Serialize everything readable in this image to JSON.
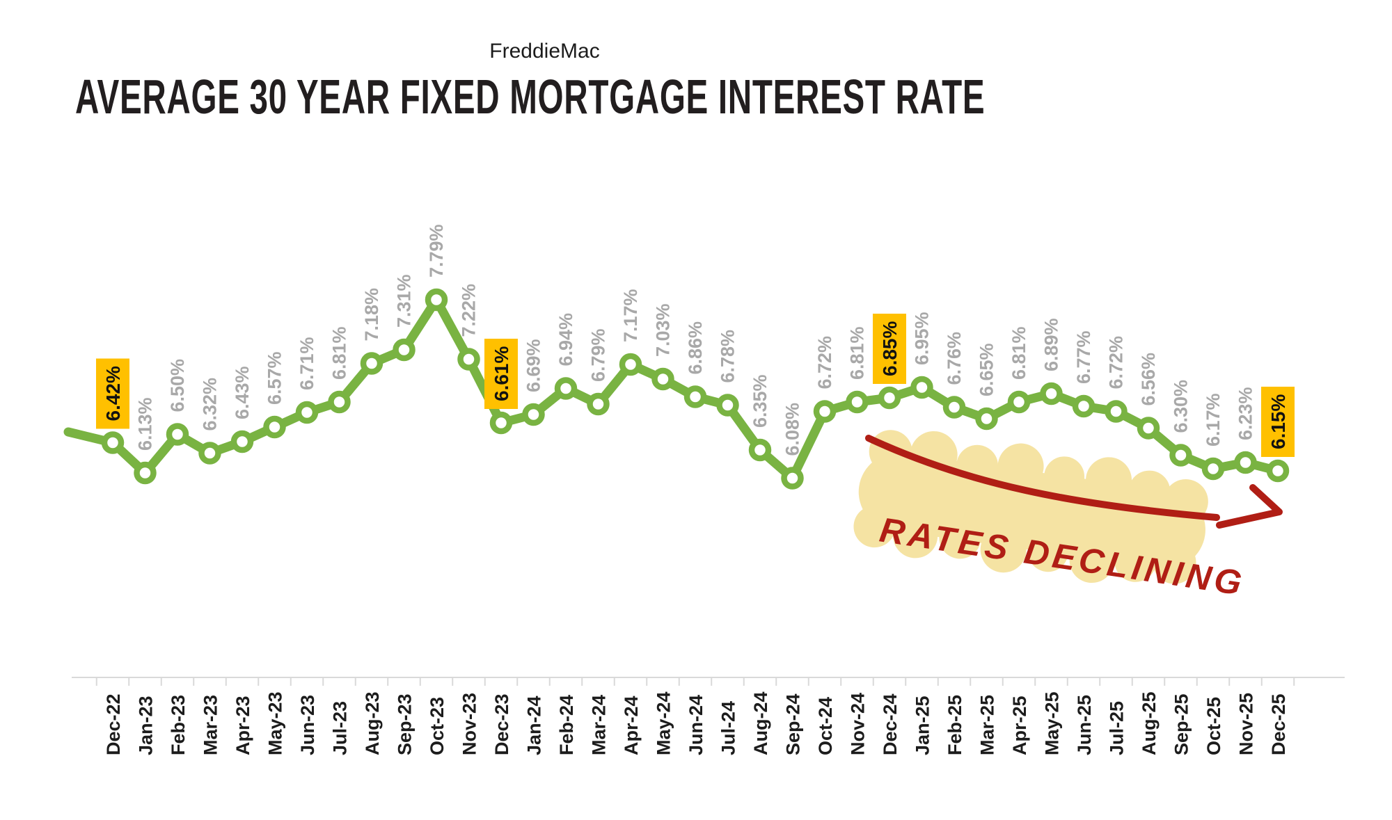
{
  "header": {
    "subtitle": "FreddieMac",
    "title": "AVERAGE 30 YEAR FIXED MORTGAGE INTEREST RATE"
  },
  "annotation": {
    "text": "RATES DECLINING"
  },
  "colors": {
    "line_green": "#79b342",
    "marker_fill": "#ffffff",
    "highlight_orange": "#ffc000",
    "label_gray": "#a8a8a8",
    "label_black": "#1c1c1c",
    "axis_gray": "#d9d9d9",
    "annotation_red": "#b01e15",
    "annotation_highlight": "#f5e3a3"
  },
  "chart_data": {
    "type": "line",
    "title": "AVERAGE 30 YEAR FIXED MORTGAGE INTEREST RATE",
    "subtitle": "FreddieMac",
    "xlabel": "",
    "ylabel": "",
    "legend": "none",
    "grid": false,
    "ylim": [
      5.9,
      8.0
    ],
    "label_format": "0.00%",
    "categories": [
      "Dec-22",
      "Jan-23",
      "Feb-23",
      "Mar-23",
      "Apr-23",
      "May-23",
      "Jun-23",
      "Jul-23",
      "Aug-23",
      "Sep-23",
      "Oct-23",
      "Nov-23",
      "Dec-23",
      "Jan-24",
      "Feb-24",
      "Mar-24",
      "Apr-24",
      "May-24",
      "Jun-24",
      "Jul-24",
      "Aug-24",
      "Sep-24",
      "Oct-24",
      "Nov-24",
      "Dec-24",
      "Jan-25",
      "Feb-25",
      "Mar-25",
      "Apr-25",
      "May-25",
      "Jun-25",
      "Jul-25",
      "Aug-25",
      "Sep-25",
      "Oct-25",
      "Nov-25",
      "Dec-25"
    ],
    "values": [
      6.42,
      6.13,
      6.5,
      6.32,
      6.43,
      6.57,
      6.71,
      6.81,
      7.18,
      7.31,
      7.79,
      7.22,
      6.61,
      6.69,
      6.94,
      6.79,
      7.17,
      7.03,
      6.86,
      6.78,
      6.35,
      6.08,
      6.72,
      6.81,
      6.85,
      6.95,
      6.76,
      6.65,
      6.81,
      6.89,
      6.77,
      6.72,
      6.56,
      6.3,
      6.17,
      6.23,
      6.15
    ],
    "data_labels": [
      "6.42%",
      "6.13%",
      "6.50%",
      "6.32%",
      "6.43%",
      "6.57%",
      "6.71%",
      "6.81%",
      "7.18%",
      "7.31%",
      "7.79%",
      "7.22%",
      "6.61%",
      "6.69%",
      "6.94%",
      "6.79%",
      "7.17%",
      "7.03%",
      "6.86%",
      "6.78%",
      "6.35%",
      "6.08%",
      "6.72%",
      "6.81%",
      "6.85%",
      "6.95%",
      "6.76%",
      "6.65%",
      "6.81%",
      "6.89%",
      "6.77%",
      "6.72%",
      "6.56%",
      "6.30%",
      "6.17%",
      "6.23%",
      "6.15%"
    ],
    "highlighted_categories": [
      "Dec-22",
      "Dec-23",
      "Dec-24",
      "Dec-25"
    ]
  }
}
